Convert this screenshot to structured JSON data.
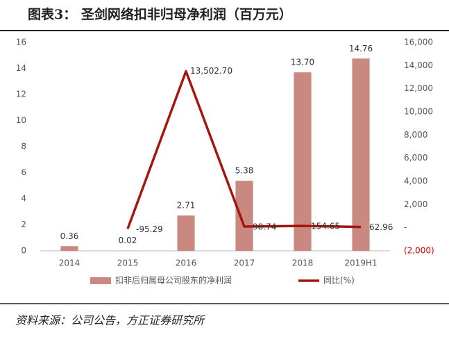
{
  "chart_data": {
    "type": "bar_line",
    "title": "图表3：  圣剑网络扣非归母净利润（百万元）",
    "source": "资料来源：公司公告，方正证券研究所",
    "categories": [
      "2014",
      "2015",
      "2016",
      "2017",
      "2018",
      "2019H1"
    ],
    "series": [
      {
        "name": "扣非后归属母公司股东的净利润",
        "color": "#c98880",
        "type": "bar",
        "values": [
          0.36,
          0.02,
          2.71,
          5.38,
          13.7,
          14.76
        ],
        "value_labels": [
          "0.36",
          "0.02",
          "2.71",
          "5.38",
          "13.70",
          "14.76"
        ]
      },
      {
        "name": "同比(%)",
        "color": "#a3170f",
        "type": "line",
        "axis": "y2",
        "values": [
          null,
          -95.29,
          13502.7,
          98.74,
          154.65,
          62.96
        ],
        "value_labels": [
          null,
          "-95.29",
          "13,502.70",
          "98.74",
          "154.65",
          "62.96"
        ]
      }
    ],
    "ylim": [
      0,
      16
    ],
    "yticks": [
      0,
      2,
      4,
      6,
      8,
      10,
      12,
      14,
      16
    ],
    "y2lim": [
      -2000,
      16000
    ],
    "y2ticks": [
      {
        "value": -2000,
        "label": "(2,000)"
      },
      {
        "value": 0,
        "label": "-"
      },
      {
        "value": 2000,
        "label": "2,000"
      },
      {
        "value": 4000,
        "label": "4,000"
      },
      {
        "value": 6000,
        "label": "6,000"
      },
      {
        "value": 8000,
        "label": "8,000"
      },
      {
        "value": 10000,
        "label": "10,000"
      },
      {
        "value": 12000,
        "label": "12,000"
      },
      {
        "value": 14000,
        "label": "14,000"
      },
      {
        "value": 16000,
        "label": "16,000"
      }
    ],
    "legend": "bottom"
  }
}
